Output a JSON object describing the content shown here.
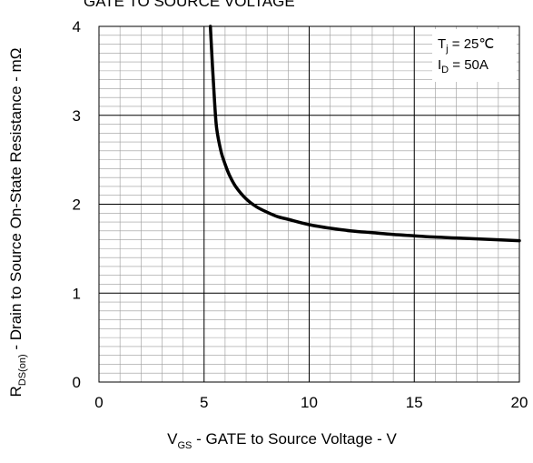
{
  "chart_data": {
    "type": "line",
    "title": "GATE TO SOURCE VOLTAGE",
    "xlabel": {
      "main": "V",
      "sub": "GS",
      "rest": " - GATE to Source Voltage - V"
    },
    "ylabel": {
      "main": "R",
      "sub": "DS(on)",
      "rest": " - Drain to Source On-State Resistance - mΩ"
    },
    "xlim": [
      0,
      20
    ],
    "ylim": [
      0,
      4
    ],
    "x_ticks": [
      "0",
      "5",
      "10",
      "15",
      "20"
    ],
    "y_ticks": [
      "0",
      "1",
      "2",
      "3",
      "4"
    ],
    "grid": true,
    "legend_placement": "top-right",
    "conditions": [
      {
        "main": "T",
        "sub": "j",
        "rest": " = 25℃"
      },
      {
        "main": "I",
        "sub": "D",
        "rest": " = 50A"
      }
    ],
    "series": [
      {
        "x": [
          5.3,
          5.4,
          5.5,
          5.6,
          5.8,
          6.0,
          6.2,
          6.5,
          7.0,
          7.5,
          8.0,
          8.5,
          9.0,
          10.0,
          11.0,
          12.0,
          13.0,
          14.0,
          15.0,
          16.0,
          17.0,
          18.0,
          19.0,
          20.0
        ],
        "y": [
          4.0,
          3.55,
          3.15,
          2.85,
          2.6,
          2.45,
          2.33,
          2.2,
          2.06,
          1.97,
          1.91,
          1.86,
          1.83,
          1.77,
          1.73,
          1.7,
          1.68,
          1.66,
          1.645,
          1.63,
          1.62,
          1.61,
          1.6,
          1.59
        ],
        "color": "#000000"
      }
    ]
  }
}
